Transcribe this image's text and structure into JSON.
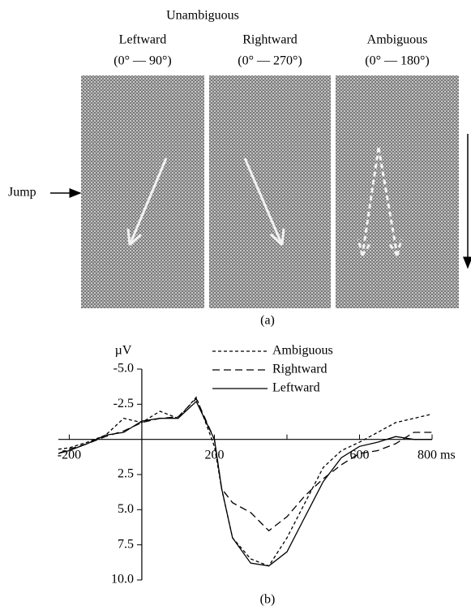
{
  "panel_a": {
    "group_label": "Unambiguous",
    "panels": [
      {
        "title": "Leftward",
        "range": "(0° — 90°)"
      },
      {
        "title": "Rightward",
        "range": "(0° — 270°)"
      },
      {
        "title": "Ambiguous",
        "range": "(0° — 180°)"
      }
    ],
    "jump_label": "Jump",
    "caption": "(a)"
  },
  "chart_data": {
    "type": "line",
    "y_unit": "µV",
    "caption": "(b)",
    "x": [
      -230,
      -200,
      -150,
      -100,
      -50,
      0,
      50,
      100,
      150,
      200,
      220,
      250,
      300,
      350,
      400,
      450,
      500,
      550,
      600,
      650,
      700,
      750,
      800
    ],
    "xlim": [
      -230,
      800
    ],
    "xticks": [
      -200,
      200,
      600,
      {
        "value": 800,
        "label": "800 ms"
      }
    ],
    "xticks_unlabeled": [
      0,
      400
    ],
    "ylim": [
      10,
      -5
    ],
    "yticks": [
      {
        "value": -5,
        "label": "-5.0"
      },
      {
        "value": -2.5,
        "label": "-2.5"
      },
      {
        "value": 2.5,
        "label": "2.5"
      },
      {
        "value": 5,
        "label": "5.0"
      },
      {
        "value": 7.5,
        "label": "7.5"
      },
      {
        "value": 10,
        "label": "10.0"
      }
    ],
    "series": [
      {
        "name": "Ambiguous",
        "color": "#000000",
        "dash": "dotted",
        "values": [
          0.7,
          0.6,
          0.2,
          -0.3,
          -1.5,
          -1.2,
          -2.0,
          -1.5,
          -3.0,
          0.5,
          3.5,
          7.0,
          8.5,
          9.0,
          7.0,
          4.5,
          2.0,
          0.8,
          0.2,
          -0.5,
          -1.2,
          -1.5,
          -1.8
        ]
      },
      {
        "name": "Rightward",
        "color": "#000000",
        "dash": "dashed",
        "values": [
          1.0,
          0.7,
          0.3,
          -0.2,
          -0.6,
          -1.2,
          -1.5,
          -1.6,
          -2.9,
          0,
          3.5,
          4.5,
          5.2,
          6.5,
          5.5,
          4.0,
          2.8,
          1.8,
          1.0,
          0.8,
          0.3,
          -0.5,
          -0.5
        ]
      },
      {
        "name": "Leftward",
        "color": "#000000",
        "dash": "solid",
        "values": [
          1.0,
          0.8,
          0.3,
          -0.3,
          -0.5,
          -1.3,
          -1.5,
          -1.5,
          -2.7,
          0,
          3.5,
          7.0,
          8.8,
          9.0,
          8.0,
          5.5,
          3.0,
          1.3,
          0.5,
          0.2,
          -0.2,
          0,
          0
        ]
      }
    ]
  }
}
